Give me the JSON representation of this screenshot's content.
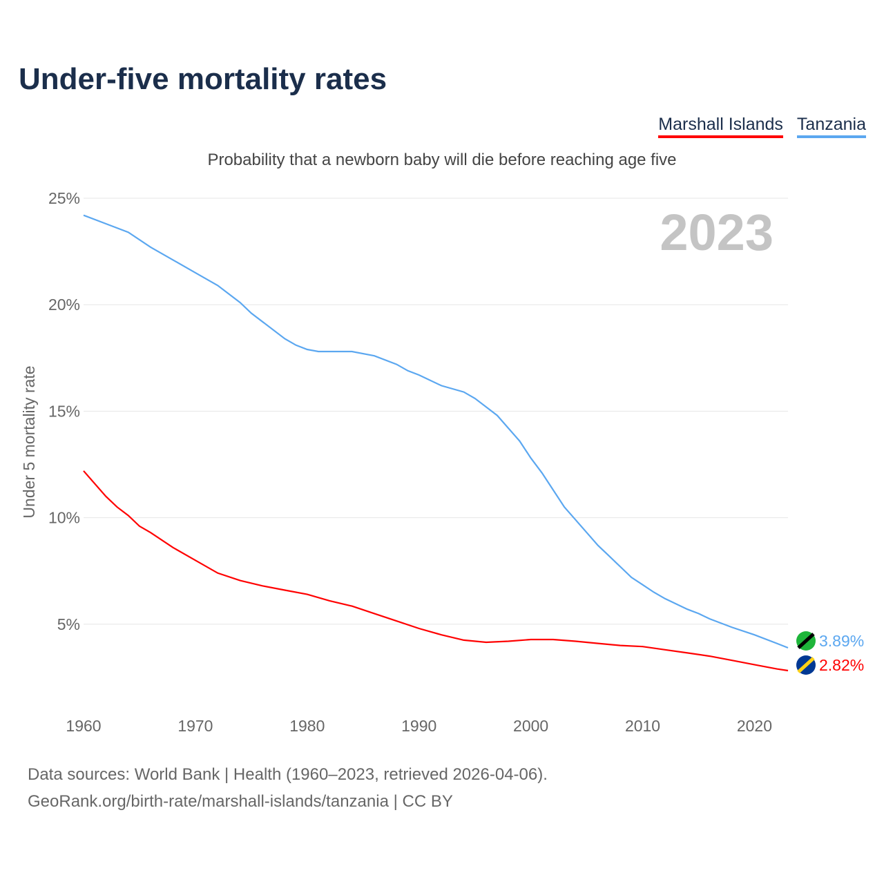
{
  "chart_data": {
    "type": "line",
    "title": "Under-five mortality rates",
    "subtitle": "Probability that a newborn baby will die before reaching age five",
    "ylabel": "Under 5 mortality rate",
    "xlabel": "",
    "year_label": "2023",
    "ylim": [
      0,
      25
    ],
    "xlim": [
      1960,
      2023
    ],
    "yticks": [
      5,
      10,
      15,
      20,
      25
    ],
    "ytick_labels": [
      "5%",
      "10%",
      "15%",
      "20%",
      "25%"
    ],
    "xticks": [
      1960,
      1970,
      1980,
      1990,
      2000,
      2010,
      2020
    ],
    "xtick_labels": [
      "1960",
      "1970",
      "1980",
      "1990",
      "2000",
      "2010",
      "2020"
    ],
    "legend": "top-right",
    "series": [
      {
        "name": "Marshall Islands",
        "color": "#ff0000",
        "end_label": "2.82%",
        "points": [
          [
            1960,
            12.2
          ],
          [
            1962,
            11.0
          ],
          [
            1963,
            10.5
          ],
          [
            1964,
            10.1
          ],
          [
            1965,
            9.6
          ],
          [
            1966,
            9.3
          ],
          [
            1968,
            8.6
          ],
          [
            1970,
            8.0
          ],
          [
            1972,
            7.4
          ],
          [
            1974,
            7.05
          ],
          [
            1976,
            6.8
          ],
          [
            1978,
            6.6
          ],
          [
            1980,
            6.4
          ],
          [
            1982,
            6.1
          ],
          [
            1984,
            5.85
          ],
          [
            1986,
            5.5
          ],
          [
            1988,
            5.15
          ],
          [
            1990,
            4.8
          ],
          [
            1992,
            4.5
          ],
          [
            1994,
            4.25
          ],
          [
            1996,
            4.15
          ],
          [
            1998,
            4.2
          ],
          [
            2000,
            4.28
          ],
          [
            2002,
            4.28
          ],
          [
            2004,
            4.2
          ],
          [
            2006,
            4.1
          ],
          [
            2008,
            4.0
          ],
          [
            2010,
            3.95
          ],
          [
            2012,
            3.8
          ],
          [
            2014,
            3.65
          ],
          [
            2016,
            3.5
          ],
          [
            2018,
            3.3
          ],
          [
            2020,
            3.1
          ],
          [
            2022,
            2.9
          ],
          [
            2023,
            2.82
          ]
        ]
      },
      {
        "name": "Tanzania",
        "color": "#5ba7f0",
        "end_label": "3.89%",
        "points": [
          [
            1960,
            24.2
          ],
          [
            1962,
            23.8
          ],
          [
            1964,
            23.4
          ],
          [
            1966,
            22.7
          ],
          [
            1968,
            22.1
          ],
          [
            1970,
            21.5
          ],
          [
            1971,
            21.2
          ],
          [
            1972,
            20.9
          ],
          [
            1974,
            20.1
          ],
          [
            1975,
            19.6
          ],
          [
            1978,
            18.4
          ],
          [
            1979,
            18.1
          ],
          [
            1980,
            17.9
          ],
          [
            1981,
            17.8
          ],
          [
            1984,
            17.8
          ],
          [
            1986,
            17.6
          ],
          [
            1988,
            17.2
          ],
          [
            1989,
            16.9
          ],
          [
            1990,
            16.7
          ],
          [
            1992,
            16.2
          ],
          [
            1994,
            15.9
          ],
          [
            1995,
            15.6
          ],
          [
            1996,
            15.2
          ],
          [
            1997,
            14.8
          ],
          [
            1998,
            14.2
          ],
          [
            1999,
            13.6
          ],
          [
            2000,
            12.8
          ],
          [
            2001,
            12.1
          ],
          [
            2002,
            11.3
          ],
          [
            2003,
            10.5
          ],
          [
            2004,
            9.9
          ],
          [
            2005,
            9.3
          ],
          [
            2006,
            8.7
          ],
          [
            2007,
            8.2
          ],
          [
            2008,
            7.7
          ],
          [
            2009,
            7.2
          ],
          [
            2010,
            6.85
          ],
          [
            2011,
            6.5
          ],
          [
            2012,
            6.2
          ],
          [
            2014,
            5.7
          ],
          [
            2015,
            5.5
          ],
          [
            2016,
            5.25
          ],
          [
            2018,
            4.85
          ],
          [
            2020,
            4.5
          ],
          [
            2022,
            4.1
          ],
          [
            2023,
            3.89
          ]
        ]
      }
    ]
  },
  "footer": {
    "line1": "Data sources: World Bank | Health (1960–2023, retrieved 2026-04-06).",
    "line2": "GeoRank.org/birth-rate/marshall-islands/tanzania | CC BY"
  }
}
